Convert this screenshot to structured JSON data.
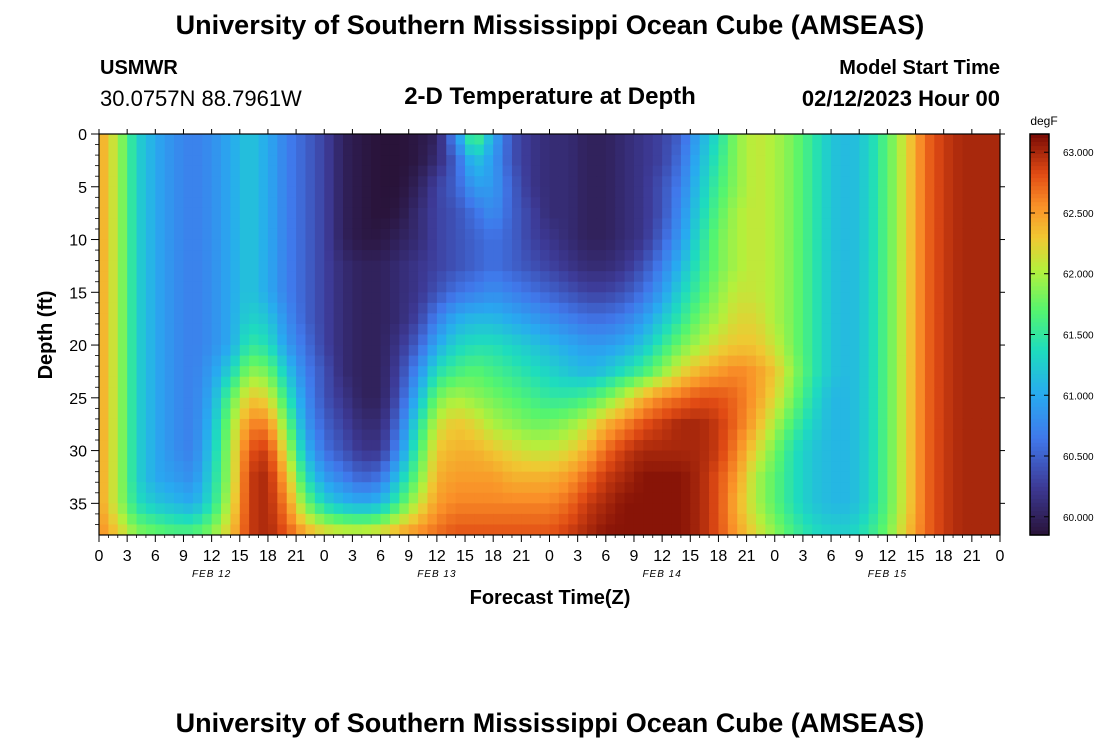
{
  "header": {
    "title": "University of Southern Mississippi Ocean Cube (AMSEAS)",
    "station": "USMWR",
    "coordinates": "30.0757N  88.7961W",
    "subtitle": "2-D Temperature at Depth",
    "start_label": "Model Start Time",
    "start_value": "02/12/2023 Hour 00"
  },
  "footer": {
    "title": "University of Southern Mississippi Ocean Cube (AMSEAS)"
  },
  "chart_data": {
    "type": "heatmap",
    "title": "2-D Temperature at Depth",
    "xlabel": "Forecast Time(Z)",
    "ylabel": "Depth (ft)",
    "x_ticks": [
      "0",
      "3",
      "6",
      "9",
      "12",
      "15",
      "18",
      "21",
      "0",
      "3",
      "6",
      "9",
      "12",
      "15",
      "18",
      "21",
      "0",
      "3",
      "6",
      "9",
      "12",
      "15",
      "18",
      "21",
      "0",
      "3",
      "6",
      "9",
      "12",
      "15",
      "18",
      "21",
      "0"
    ],
    "day_labels": [
      "FEB 12",
      "FEB 13",
      "FEB 14",
      "FEB 15"
    ],
    "xlim_hours": [
      0,
      96
    ],
    "y_ticks": [
      0,
      5,
      10,
      15,
      20,
      25,
      30,
      35
    ],
    "ylim_ft": [
      0,
      38
    ],
    "colorbar": {
      "unit": "degF",
      "ticks": [
        "63.000",
        "62.500",
        "62.000",
        "61.500",
        "61.000",
        "60.500",
        "60.000"
      ],
      "range": [
        59.85,
        63.15
      ]
    },
    "grid_hours": [
      0,
      2,
      4,
      6,
      8,
      10,
      12,
      14,
      16,
      18,
      20,
      22,
      24,
      26,
      28,
      30,
      32,
      34,
      36,
      38,
      40,
      42,
      44,
      46,
      48,
      50,
      52,
      54,
      56,
      58,
      60,
      62,
      64,
      66,
      68,
      70,
      72,
      74,
      76,
      78,
      80,
      82,
      84,
      86,
      88,
      90,
      92,
      94,
      96
    ],
    "grid_depths_ft": [
      0,
      2.5,
      5,
      7.5,
      10,
      12.5,
      15,
      17.5,
      20,
      22.5,
      25,
      27.5,
      30,
      32.5,
      35,
      38
    ],
    "temperature_degF": [
      [
        62.5,
        62.0,
        61.3,
        61.0,
        60.8,
        60.7,
        60.8,
        61.0,
        61.2,
        61.0,
        60.7,
        60.5,
        60.3,
        60.0,
        59.9,
        59.85,
        59.85,
        59.9,
        60.0,
        60.8,
        61.8,
        61.0,
        60.4,
        60.2,
        60.1,
        60.1,
        60.0,
        60.0,
        60.1,
        60.2,
        60.3,
        60.5,
        61.0,
        61.4,
        61.9,
        62.1,
        62.0,
        61.8,
        61.5,
        61.2,
        61.1,
        61.3,
        61.7,
        62.2,
        62.7,
        62.9,
        63.0,
        63.0,
        63.0
      ],
      [
        62.5,
        62.0,
        61.3,
        61.0,
        60.8,
        60.7,
        60.8,
        61.0,
        61.2,
        61.0,
        60.7,
        60.5,
        60.3,
        60.0,
        59.9,
        59.85,
        59.85,
        59.9,
        60.1,
        60.5,
        61.2,
        60.9,
        60.4,
        60.2,
        60.1,
        60.1,
        60.0,
        60.0,
        60.1,
        60.2,
        60.3,
        60.6,
        61.1,
        61.5,
        61.9,
        62.1,
        62.0,
        61.8,
        61.5,
        61.2,
        61.1,
        61.3,
        61.7,
        62.2,
        62.7,
        62.9,
        63.0,
        63.0,
        63.0
      ],
      [
        62.5,
        62.0,
        61.3,
        61.0,
        60.8,
        60.7,
        60.8,
        61.0,
        61.2,
        61.0,
        60.7,
        60.5,
        60.3,
        60.0,
        59.9,
        59.85,
        59.85,
        60.0,
        60.3,
        60.5,
        60.9,
        60.9,
        60.5,
        60.2,
        60.1,
        60.1,
        60.0,
        60.0,
        60.1,
        60.2,
        60.4,
        60.7,
        61.2,
        61.6,
        61.9,
        62.1,
        62.0,
        61.8,
        61.5,
        61.2,
        61.1,
        61.3,
        61.7,
        62.2,
        62.7,
        62.9,
        63.0,
        63.0,
        63.0
      ],
      [
        62.5,
        62.0,
        61.3,
        61.0,
        60.8,
        60.7,
        60.8,
        61.0,
        61.2,
        61.0,
        60.7,
        60.5,
        60.3,
        60.0,
        59.9,
        59.85,
        59.9,
        60.1,
        60.3,
        60.4,
        60.6,
        60.8,
        60.5,
        60.3,
        60.1,
        60.1,
        60.0,
        60.0,
        60.1,
        60.2,
        60.4,
        60.8,
        61.3,
        61.7,
        62.0,
        62.1,
        62.0,
        61.8,
        61.5,
        61.2,
        61.1,
        61.3,
        61.7,
        62.2,
        62.7,
        62.9,
        63.0,
        63.0,
        63.0
      ],
      [
        62.5,
        62.0,
        61.3,
        61.0,
        60.8,
        60.7,
        60.8,
        61.0,
        61.2,
        61.0,
        60.7,
        60.5,
        60.3,
        60.0,
        59.9,
        59.9,
        60.0,
        60.1,
        60.3,
        60.4,
        60.5,
        60.6,
        60.5,
        60.3,
        60.2,
        60.1,
        60.0,
        60.0,
        60.1,
        60.2,
        60.5,
        60.9,
        61.4,
        61.8,
        62.0,
        62.1,
        62.0,
        61.8,
        61.5,
        61.2,
        61.1,
        61.3,
        61.7,
        62.2,
        62.7,
        62.9,
        63.0,
        63.0,
        63.0
      ],
      [
        62.5,
        62.0,
        61.3,
        61.0,
        60.8,
        60.7,
        60.8,
        61.0,
        61.2,
        61.0,
        60.7,
        60.5,
        60.3,
        60.1,
        60.0,
        60.0,
        60.1,
        60.2,
        60.3,
        60.4,
        60.5,
        60.6,
        60.5,
        60.4,
        60.3,
        60.2,
        60.1,
        60.1,
        60.2,
        60.4,
        60.7,
        61.1,
        61.5,
        61.8,
        62.0,
        62.1,
        62.0,
        61.8,
        61.5,
        61.2,
        61.1,
        61.3,
        61.7,
        62.2,
        62.7,
        62.9,
        63.0,
        63.0,
        63.0
      ],
      [
        62.5,
        62.0,
        61.3,
        61.0,
        60.8,
        60.7,
        60.8,
        61.0,
        61.2,
        61.0,
        60.7,
        60.5,
        60.3,
        60.1,
        60.0,
        60.0,
        60.1,
        60.2,
        60.4,
        60.6,
        60.7,
        60.8,
        60.7,
        60.6,
        60.5,
        60.4,
        60.3,
        60.3,
        60.4,
        60.6,
        60.9,
        61.3,
        61.6,
        61.9,
        62.1,
        62.1,
        62.0,
        61.8,
        61.5,
        61.2,
        61.1,
        61.3,
        61.7,
        62.2,
        62.7,
        62.9,
        63.0,
        63.0,
        63.0
      ],
      [
        62.5,
        62.0,
        61.3,
        61.0,
        60.8,
        60.7,
        60.8,
        61.0,
        61.3,
        61.2,
        60.8,
        60.5,
        60.3,
        60.1,
        60.0,
        60.0,
        60.1,
        60.3,
        60.7,
        61.0,
        61.1,
        61.1,
        61.0,
        60.9,
        60.8,
        60.7,
        60.6,
        60.6,
        60.7,
        60.9,
        61.2,
        61.5,
        61.8,
        62.0,
        62.2,
        62.2,
        62.0,
        61.8,
        61.5,
        61.2,
        61.1,
        61.3,
        61.7,
        62.2,
        62.7,
        62.9,
        63.0,
        63.0,
        63.0
      ],
      [
        62.5,
        62.0,
        61.3,
        61.0,
        60.8,
        60.7,
        60.8,
        61.0,
        61.5,
        61.4,
        60.9,
        60.6,
        60.3,
        60.1,
        60.0,
        60.0,
        60.2,
        60.5,
        61.0,
        61.3,
        61.4,
        61.4,
        61.3,
        61.2,
        61.1,
        61.0,
        60.9,
        60.9,
        61.0,
        61.2,
        61.5,
        61.8,
        62.0,
        62.2,
        62.3,
        62.3,
        62.1,
        61.8,
        61.5,
        61.2,
        61.1,
        61.3,
        61.7,
        62.2,
        62.7,
        62.9,
        63.0,
        63.0,
        63.0
      ],
      [
        62.5,
        62.0,
        61.3,
        61.0,
        60.8,
        60.7,
        60.9,
        61.3,
        61.9,
        61.8,
        61.2,
        60.7,
        60.4,
        60.1,
        60.0,
        60.0,
        60.3,
        60.8,
        61.4,
        61.6,
        61.7,
        61.6,
        61.5,
        61.4,
        61.3,
        61.2,
        61.1,
        61.2,
        61.4,
        61.6,
        61.9,
        62.2,
        62.4,
        62.5,
        62.6,
        62.5,
        62.3,
        61.9,
        61.5,
        61.2,
        61.1,
        61.3,
        61.7,
        62.2,
        62.7,
        62.9,
        63.0,
        63.0,
        63.0
      ],
      [
        62.5,
        62.0,
        61.3,
        61.0,
        60.8,
        60.7,
        61.0,
        61.7,
        62.3,
        62.2,
        61.5,
        60.8,
        60.4,
        60.2,
        60.0,
        60.0,
        60.4,
        61.1,
        61.8,
        62.0,
        61.9,
        61.8,
        61.7,
        61.6,
        61.5,
        61.5,
        61.6,
        61.8,
        62.1,
        62.4,
        62.6,
        62.7,
        62.8,
        62.8,
        62.7,
        62.5,
        62.2,
        61.8,
        61.4,
        61.1,
        61.1,
        61.3,
        61.7,
        62.2,
        62.7,
        62.9,
        63.0,
        63.0,
        63.0
      ],
      [
        62.5,
        62.0,
        61.3,
        61.0,
        60.8,
        60.7,
        61.1,
        61.9,
        62.6,
        62.6,
        61.8,
        60.9,
        60.5,
        60.3,
        60.1,
        60.1,
        60.6,
        61.4,
        62.1,
        62.3,
        62.2,
        62.0,
        61.9,
        61.8,
        61.8,
        61.9,
        62.1,
        62.4,
        62.6,
        62.8,
        62.9,
        63.0,
        63.0,
        62.9,
        62.7,
        62.4,
        62.0,
        61.6,
        61.3,
        61.1,
        61.1,
        61.3,
        61.7,
        62.2,
        62.7,
        62.9,
        63.0,
        63.0,
        63.0
      ],
      [
        62.5,
        62.0,
        61.3,
        61.0,
        60.8,
        60.7,
        61.2,
        62.0,
        62.8,
        62.9,
        62.1,
        61.1,
        60.6,
        60.4,
        60.2,
        60.2,
        60.8,
        61.6,
        62.3,
        62.4,
        62.4,
        62.3,
        62.2,
        62.1,
        62.1,
        62.2,
        62.4,
        62.7,
        62.9,
        63.0,
        63.0,
        63.0,
        63.0,
        62.9,
        62.6,
        62.2,
        61.8,
        61.4,
        61.2,
        61.1,
        61.1,
        61.3,
        61.7,
        62.2,
        62.7,
        62.9,
        63.0,
        63.0,
        63.0
      ],
      [
        62.5,
        62.0,
        61.3,
        61.0,
        60.9,
        60.8,
        61.3,
        62.0,
        62.9,
        63.0,
        62.4,
        61.4,
        60.9,
        60.7,
        60.5,
        60.6,
        61.2,
        61.8,
        62.4,
        62.5,
        62.5,
        62.5,
        62.4,
        62.4,
        62.4,
        62.5,
        62.7,
        62.9,
        63.0,
        63.1,
        63.1,
        63.1,
        63.0,
        62.8,
        62.5,
        62.0,
        61.7,
        61.4,
        61.2,
        61.1,
        61.1,
        61.3,
        61.7,
        62.2,
        62.7,
        62.9,
        63.0,
        63.0,
        63.0
      ],
      [
        62.5,
        62.0,
        61.4,
        61.2,
        61.1,
        61.0,
        61.4,
        62.1,
        62.9,
        63.0,
        62.6,
        61.8,
        61.3,
        61.1,
        61.0,
        61.1,
        61.6,
        62.1,
        62.5,
        62.6,
        62.6,
        62.6,
        62.6,
        62.6,
        62.6,
        62.7,
        62.9,
        63.0,
        63.1,
        63.1,
        63.1,
        63.1,
        63.0,
        62.8,
        62.4,
        62.0,
        61.7,
        61.4,
        61.2,
        61.1,
        61.1,
        61.3,
        61.7,
        62.2,
        62.7,
        62.9,
        63.0,
        63.0,
        63.0
      ],
      [
        62.6,
        62.3,
        61.9,
        61.8,
        61.7,
        61.7,
        61.9,
        62.3,
        62.9,
        63.0,
        62.8,
        62.5,
        62.3,
        62.2,
        62.2,
        62.3,
        62.5,
        62.6,
        62.7,
        62.8,
        62.8,
        62.8,
        62.8,
        62.8,
        62.8,
        62.9,
        63.0,
        63.1,
        63.1,
        63.1,
        63.1,
        63.1,
        63.0,
        62.8,
        62.5,
        62.2,
        61.9,
        61.6,
        61.4,
        61.3,
        61.3,
        61.5,
        61.8,
        62.3,
        62.7,
        62.9,
        63.0,
        63.0,
        63.0
      ]
    ]
  }
}
